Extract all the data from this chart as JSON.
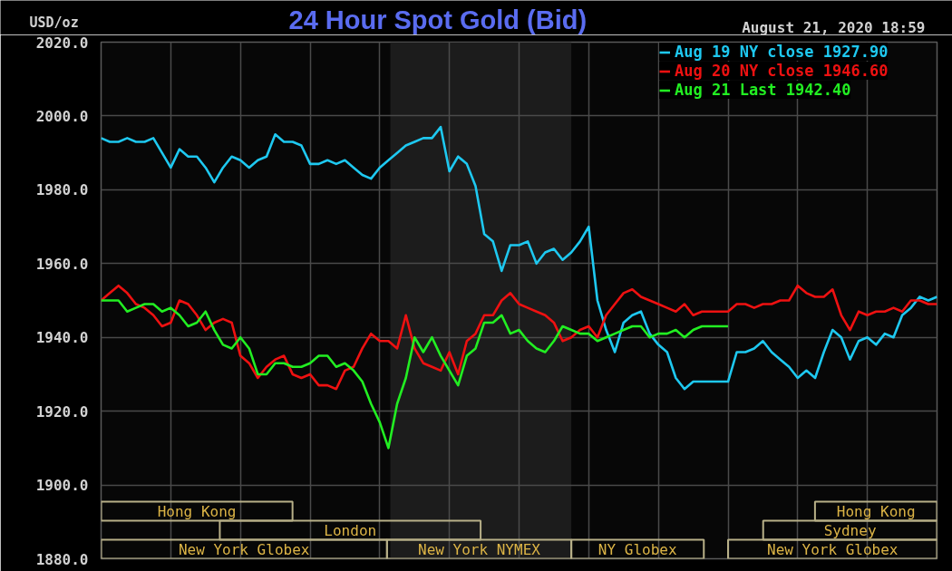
{
  "chart_data": {
    "type": "line",
    "title": "24 Hour Spot Gold (Bid)",
    "ylabel": "USD/oz",
    "annotations": [
      "August 21, 2020 18:59",
      "New York Globex",
      "New York NYMEX",
      "NY Globex",
      "New York Globex",
      "London",
      "Sydney",
      "Hong Kong",
      "Hong Kong"
    ],
    "categories": [
      null,
      null,
      null,
      null,
      null,
      null,
      null,
      null,
      null,
      null,
      null,
      null,
      null,
      null,
      null,
      null,
      null,
      null,
      null,
      null,
      null,
      null,
      null,
      null,
      null,
      null,
      null,
      null,
      null,
      null,
      null,
      null,
      null,
      null,
      null,
      null,
      null,
      null,
      null,
      null,
      null,
      null,
      null,
      null,
      null,
      null,
      null,
      null,
      null,
      null,
      null,
      null,
      null,
      null,
      null,
      null,
      null,
      null,
      null,
      null,
      null,
      null,
      null,
      null,
      null,
      null,
      null,
      null,
      null,
      null,
      null,
      null,
      null,
      null,
      null,
      null,
      null,
      null,
      null,
      null,
      null,
      null,
      null,
      null,
      null,
      null,
      null,
      null,
      null,
      null,
      null,
      null,
      null,
      null,
      null,
      null,
      null
    ],
    "ylim": [
      1880,
      2020
    ],
    "yticks": [
      {
        "value": 1880,
        "label": "1880.0"
      },
      {
        "value": 1900,
        "label": "1900.0"
      },
      {
        "value": 1920,
        "label": "1920.0"
      },
      {
        "value": 1940,
        "label": "1940.0"
      },
      {
        "value": 1960,
        "label": "1960.0"
      },
      {
        "value": 1980,
        "label": "1980.0"
      },
      {
        "value": 2000,
        "label": "2000.0"
      },
      {
        "value": 2020,
        "label": "2020.0"
      }
    ],
    "tick_labels": "y",
    "grid": true,
    "legend": "top right",
    "series": [
      {
        "name": "Aug 19 NY close 1927.90",
        "color": "#1ec8f0",
        "values": [
          1994,
          1993,
          1993,
          1994,
          1993,
          1993,
          1994,
          1990,
          1986,
          1991,
          1989,
          1989,
          1986,
          1982,
          1986,
          1989,
          1988,
          1986,
          1988,
          1989,
          1995,
          1993,
          1993,
          1992,
          1987,
          1987,
          1988,
          1987,
          1988,
          1986,
          1984,
          1983,
          1986,
          1988,
          1990,
          1992,
          1993,
          1994,
          1994,
          1997,
          1985,
          1989,
          1987,
          1981,
          1968,
          1966,
          1958,
          1965,
          1965,
          1966,
          1960,
          1963,
          1964,
          1961,
          1963,
          1966,
          1970,
          1950,
          1942,
          1936,
          1944,
          1946,
          1947,
          1941,
          1938,
          1936,
          1929,
          1926,
          1928,
          1928,
          1928,
          1928,
          1928,
          1936,
          1936,
          1937,
          1939,
          1936,
          1934,
          1932,
          1929,
          1931,
          1929,
          1936,
          1942,
          1940,
          1934,
          1939,
          1940,
          1938,
          1941,
          1940,
          1946,
          1948,
          1951,
          1950,
          1951
        ]
      },
      {
        "name": "Aug 20 NY close 1946.60",
        "color": "#ee1111",
        "values": [
          1950,
          1952,
          1954,
          1952,
          1949,
          1948,
          1946,
          1943,
          1944,
          1950,
          1949,
          1946,
          1942,
          1944,
          1945,
          1944,
          1935,
          1933,
          1929,
          1932,
          1934,
          1935,
          1930,
          1929,
          1930,
          1927,
          1927,
          1926,
          1931,
          1932,
          1937,
          1941,
          1939,
          1939,
          1937,
          1946,
          1937,
          1933,
          1932,
          1931,
          1936,
          1930,
          1939,
          1941,
          1946,
          1946,
          1950,
          1952,
          1949,
          1948,
          1947,
          1946,
          1944,
          1939,
          1940,
          1942,
          1943,
          1940,
          1946,
          1949,
          1952,
          1953,
          1951,
          1950,
          1949,
          1948,
          1947,
          1949,
          1946,
          1947,
          1947,
          1947,
          1947,
          1949,
          1949,
          1948,
          1949,
          1949,
          1950,
          1950,
          1954,
          1952,
          1951,
          1951,
          1953,
          1946,
          1942,
          1947,
          1946,
          1947,
          1947,
          1948,
          1947,
          1950,
          1950,
          1949,
          1949
        ]
      },
      {
        "name": "Aug 21 Last 1942.40",
        "color": "#22ee22",
        "values": [
          1950,
          1950,
          1950,
          1947,
          1948,
          1949,
          1949,
          1947,
          1948,
          1946,
          1943,
          1944,
          1947,
          1942,
          1938,
          1937,
          1940,
          1937,
          1930,
          1930,
          1933,
          1933,
          1932,
          1932,
          1933,
          1935,
          1935,
          1932,
          1933,
          1931,
          1928,
          1922,
          1917,
          1910,
          1922,
          1929,
          1940,
          1936,
          1940,
          1935,
          1931,
          1927,
          1935,
          1937,
          1944,
          1944,
          1946,
          1941,
          1942,
          1939,
          1937,
          1936,
          1939,
          1943,
          1942,
          1941,
          1941,
          1939,
          1940,
          1941,
          1942,
          1943,
          1943,
          1940,
          1941,
          1941,
          1942,
          1940,
          1942,
          1943,
          1943,
          1943,
          1943,
          null,
          null,
          null,
          null,
          null,
          null,
          null,
          null,
          null,
          null,
          null,
          null,
          null,
          null,
          null,
          null,
          null,
          null,
          null,
          null,
          null,
          null,
          null,
          null
        ]
      }
    ]
  }
}
